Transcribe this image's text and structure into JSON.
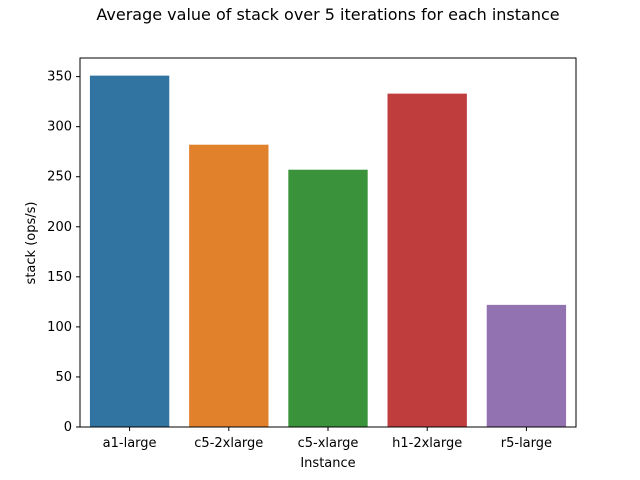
{
  "chart_data": {
    "type": "bar",
    "title": "Average value of stack over 5 iterations for each instance",
    "xlabel": "Instance",
    "ylabel": "stack (ops/s)",
    "categories": [
      "a1-large",
      "c5-2xlarge",
      "c5-xlarge",
      "h1-2xlarge",
      "r5-large"
    ],
    "values": [
      351,
      282,
      257,
      333,
      122
    ],
    "colors": [
      "#3274a1",
      "#e1812c",
      "#3a923a",
      "#c03d3e",
      "#9372b2"
    ],
    "ylim": [
      0,
      368.6
    ],
    "yticks": [
      0,
      50,
      100,
      150,
      200,
      250,
      300,
      350
    ],
    "grid": false,
    "legend": "none"
  }
}
